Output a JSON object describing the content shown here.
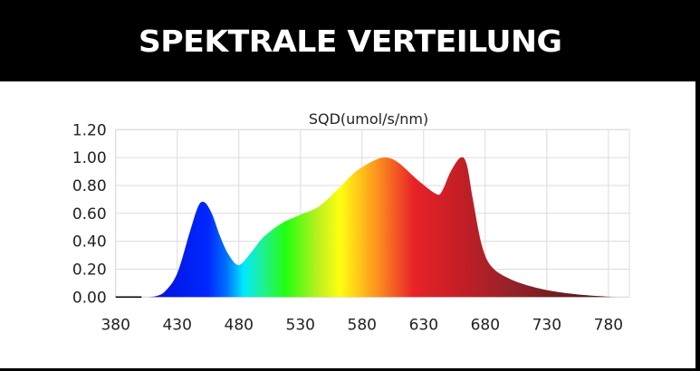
{
  "header": {
    "title": "SPEKTRALE VERTEILUNG"
  },
  "chart_data": {
    "type": "area",
    "title": "SQD(umol/s/nm)",
    "xlabel": "",
    "ylabel": "",
    "xlim": [
      380,
      797
    ],
    "ylim": [
      0,
      1.2
    ],
    "grid": true,
    "xticks": [
      "380",
      "430",
      "480",
      "530",
      "580",
      "630",
      "680",
      "730",
      "780"
    ],
    "yticks": [
      "0.00",
      "0.20",
      "0.40",
      "0.60",
      "0.80",
      "1.00",
      "1.20"
    ],
    "baseline_segment": [
      380,
      401
    ],
    "x": [
      406,
      412,
      420,
      430,
      440,
      447,
      452,
      458,
      465,
      472,
      480,
      490,
      500,
      515,
      530,
      545,
      560,
      575,
      590,
      600,
      610,
      625,
      640,
      645,
      652,
      660,
      665,
      670,
      677,
      685,
      700,
      720,
      740,
      760,
      780,
      788
    ],
    "y": [
      0,
      0.005,
      0.04,
      0.17,
      0.46,
      0.65,
      0.68,
      0.6,
      0.43,
      0.3,
      0.23,
      0.32,
      0.43,
      0.53,
      0.59,
      0.65,
      0.77,
      0.9,
      0.98,
      1.0,
      0.96,
      0.84,
      0.74,
      0.76,
      0.9,
      1.0,
      0.95,
      0.7,
      0.38,
      0.22,
      0.13,
      0.07,
      0.035,
      0.015,
      0.003,
      0
    ],
    "gradient": [
      {
        "nm": 405,
        "color": "#1a10c0"
      },
      {
        "nm": 425,
        "color": "#0018e8"
      },
      {
        "nm": 455,
        "color": "#0028ff"
      },
      {
        "nm": 470,
        "color": "#0070ff"
      },
      {
        "nm": 484,
        "color": "#00e8ff"
      },
      {
        "nm": 500,
        "color": "#20f090"
      },
      {
        "nm": 518,
        "color": "#22ff10"
      },
      {
        "nm": 545,
        "color": "#c0f020"
      },
      {
        "nm": 562,
        "color": "#ffff10"
      },
      {
        "nm": 590,
        "color": "#ff9a1e"
      },
      {
        "nm": 622,
        "color": "#e82228"
      },
      {
        "nm": 660,
        "color": "#c41e26"
      },
      {
        "nm": 700,
        "color": "#962228"
      },
      {
        "nm": 760,
        "color": "#5a1c1c"
      }
    ]
  }
}
